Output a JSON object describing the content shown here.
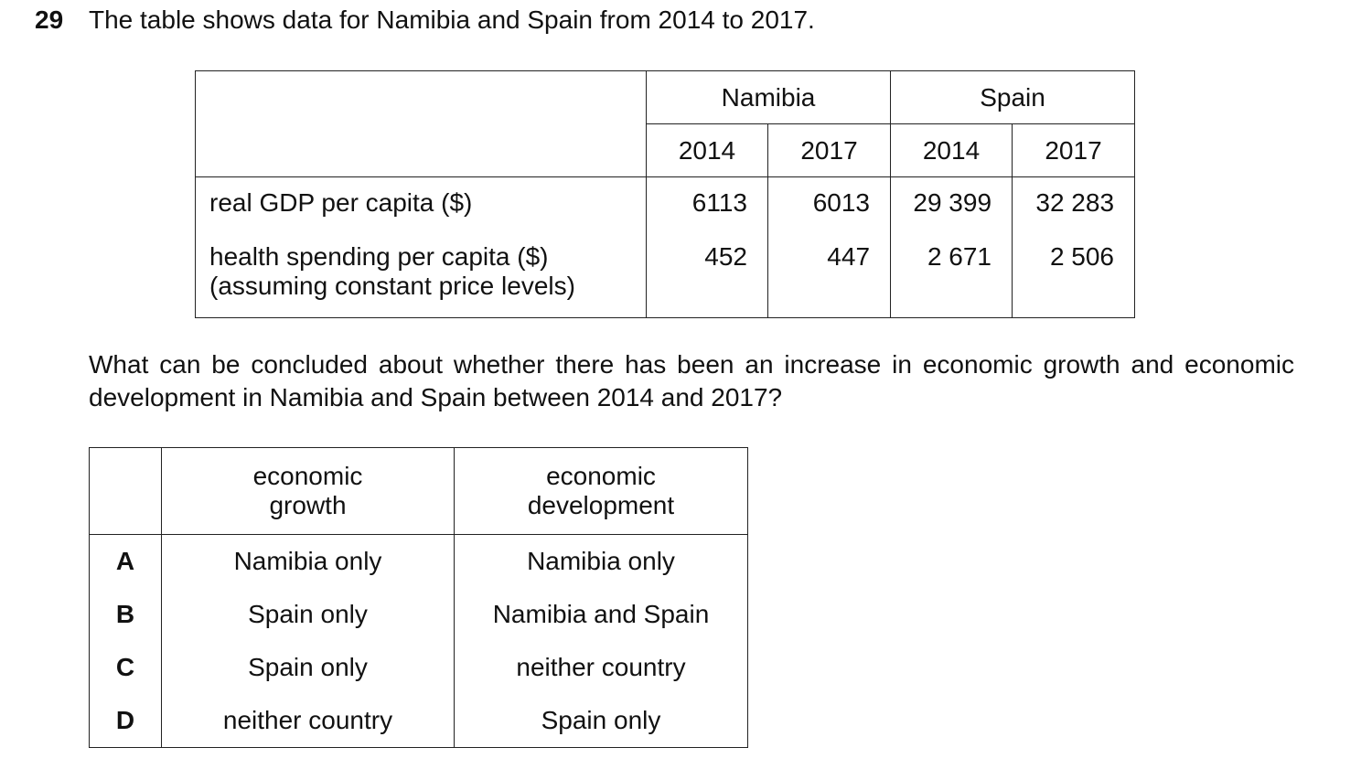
{
  "question": {
    "number": "29",
    "text": "The table shows data for Namibia and Spain from 2014 to 2017."
  },
  "data_table": {
    "countries": [
      "Namibia",
      "Spain"
    ],
    "years": [
      "2014",
      "2017",
      "2014",
      "2017"
    ],
    "rows": [
      {
        "label": [
          "real GDP per capita ($)"
        ],
        "values": [
          "6113",
          "6013",
          "29 399",
          "32 283"
        ]
      },
      {
        "label": [
          "health spending per capita ($)",
          "(assuming constant price levels)"
        ],
        "values": [
          "452",
          "447",
          "2 671",
          "2 506"
        ]
      }
    ]
  },
  "prompt": "What can be concluded about whether there has been an increase in economic growth and economic development in Namibia and Spain between 2014 and 2017?",
  "options_table": {
    "headers": [
      [
        "economic",
        "growth"
      ],
      [
        "economic",
        "development"
      ]
    ],
    "rows": [
      [
        "A",
        "Namibia only",
        "Namibia only"
      ],
      [
        "B",
        "Spain only",
        "Namibia and Spain"
      ],
      [
        "C",
        "Spain only",
        "neither country"
      ],
      [
        "D",
        "neither country",
        "Spain only"
      ]
    ]
  }
}
